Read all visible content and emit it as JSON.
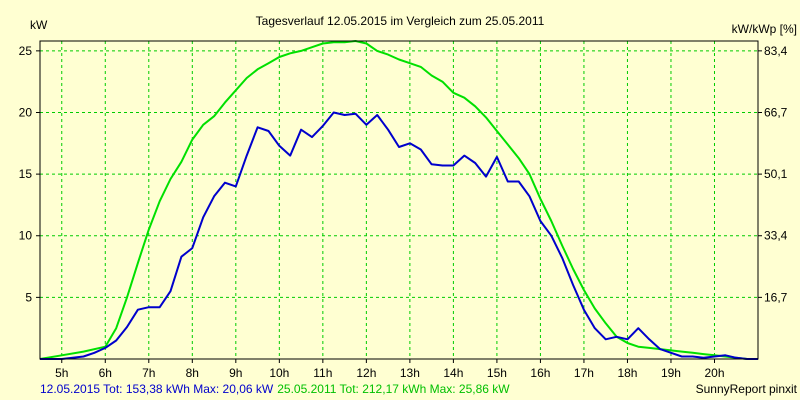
{
  "chart_data": {
    "type": "line",
    "title": "Tagesverlauf 12.05.2015 im Vergleich zum 25.05.2011",
    "ylabel_left": "kW",
    "ylabel_right": "kW/kWp [%]",
    "xlim": [
      4.5,
      21.0
    ],
    "ylim": [
      0,
      25.8
    ],
    "grid": true,
    "x_ticks": [
      5,
      6,
      7,
      8,
      9,
      10,
      11,
      12,
      13,
      14,
      15,
      16,
      17,
      18,
      19,
      20
    ],
    "x_tick_labels": [
      "5h",
      "6h",
      "7h",
      "8h",
      "9h",
      "10h",
      "11h",
      "12h",
      "13h",
      "14h",
      "15h",
      "16h",
      "17h",
      "18h",
      "19h",
      "20h"
    ],
    "y_ticks_left": [
      5,
      10,
      15,
      20,
      25
    ],
    "y_tick_labels_left": [
      "5",
      "10",
      "15",
      "20",
      "25"
    ],
    "y_tick_labels_right": [
      "16,7",
      "33,4",
      "50,1",
      "66,7",
      "83,4"
    ],
    "colors": {
      "series_2015": "#0000cc",
      "series_2011": "#00e000",
      "grid": "#00cc00",
      "background": "#ffffd2"
    },
    "series": [
      {
        "x": [
          4.5,
          5.0,
          5.5,
          5.75,
          6.0,
          6.25,
          6.5,
          6.75,
          7.0,
          7.25,
          7.5,
          7.75,
          8.0,
          8.25,
          8.5,
          8.75,
          9.0,
          9.25,
          9.5,
          9.75,
          10.0,
          10.25,
          10.5,
          10.75,
          11.0,
          11.25,
          11.5,
          11.75,
          12.0,
          12.25,
          12.5,
          12.75,
          13.0,
          13.25,
          13.5,
          13.75,
          14.0,
          14.25,
          14.5,
          14.75,
          15.0,
          15.25,
          15.5,
          15.75,
          16.0,
          16.25,
          16.5,
          16.75,
          17.0,
          17.25,
          17.5,
          17.75,
          18.0,
          18.25,
          18.5,
          18.75,
          19.0,
          19.25,
          19.5,
          19.75,
          20.0,
          20.25,
          20.5,
          20.75,
          21.0
        ],
        "values": [
          0,
          0,
          0.2,
          0.5,
          0.9,
          1.5,
          2.6,
          4.0,
          4.2,
          4.2,
          5.5,
          8.3,
          9.0,
          11.5,
          13.2,
          14.3,
          14.0,
          16.5,
          18.8,
          18.5,
          17.3,
          16.5,
          18.6,
          18.0,
          18.9,
          20.0,
          19.8,
          19.9,
          19.0,
          19.8,
          18.6,
          17.2,
          17.5,
          17.0,
          15.8,
          15.7,
          15.7,
          16.5,
          15.9,
          14.8,
          16.4,
          14.4,
          14.4,
          13.2,
          11.2,
          10.0,
          8.2,
          6.0,
          4.0,
          2.5,
          1.6,
          1.8,
          1.6,
          2.5,
          1.6,
          0.8,
          0.5,
          0.2,
          0.2,
          0.1,
          0.2,
          0.3,
          0.1,
          0,
          0
        ]
      },
      {
        "x": [
          4.5,
          5.0,
          5.5,
          6.0,
          6.25,
          6.5,
          6.75,
          7.0,
          7.25,
          7.5,
          7.75,
          8.0,
          8.25,
          8.5,
          8.75,
          9.0,
          9.25,
          9.5,
          9.75,
          10.0,
          10.25,
          10.5,
          10.75,
          11.0,
          11.25,
          11.5,
          11.75,
          12.0,
          12.25,
          12.5,
          12.75,
          13.0,
          13.25,
          13.5,
          13.75,
          14.0,
          14.25,
          14.5,
          14.75,
          15.0,
          15.25,
          15.5,
          15.75,
          16.0,
          16.25,
          16.5,
          16.75,
          17.0,
          17.25,
          17.5,
          17.75,
          18.0,
          18.25,
          18.5,
          18.75,
          19.0,
          19.25,
          19.5,
          19.75,
          20.0,
          20.25,
          20.5,
          20.75,
          21.0
        ],
        "values": [
          0,
          0.3,
          0.6,
          1.0,
          2.5,
          5.0,
          7.8,
          10.5,
          12.8,
          14.6,
          16.0,
          17.8,
          19.0,
          19.7,
          20.8,
          21.8,
          22.8,
          23.5,
          24.0,
          24.5,
          24.8,
          25.0,
          25.3,
          25.6,
          25.7,
          25.7,
          25.8,
          25.6,
          25.0,
          24.7,
          24.3,
          24.0,
          23.7,
          23.0,
          22.5,
          21.6,
          21.2,
          20.5,
          19.6,
          18.5,
          17.4,
          16.3,
          15.0,
          13.0,
          11.2,
          9.2,
          7.3,
          5.6,
          4.1,
          2.9,
          1.8,
          1.3,
          1.0,
          0.9,
          0.8,
          0.7,
          0.6,
          0.5,
          0.4,
          0.3,
          0.2,
          0.1,
          0,
          0
        ]
      }
    ],
    "legend": {
      "placement": "bottom-left",
      "series_2015_text": "12.05.2015 Tot: 153,38 kWh Max: 20,06 kW",
      "series_2011_text": "25.05.2011 Tot: 212,17 kWh Max: 25,86 kW"
    },
    "footer": "SunnyReport pinxit"
  }
}
